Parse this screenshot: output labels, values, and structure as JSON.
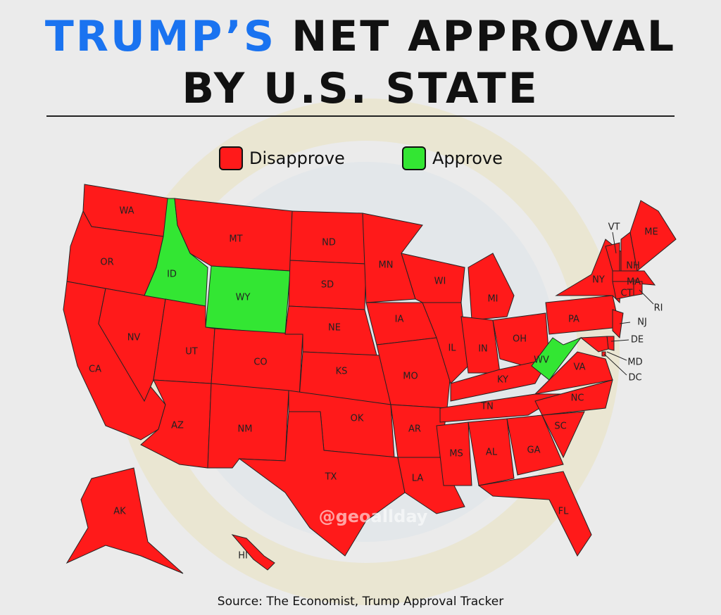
{
  "header": {
    "title_highlight": "TRUMP’S",
    "title_rest": "NET APPROVAL",
    "title_line2": "BY U.S. STATE"
  },
  "legend": [
    {
      "label": "Disapprove",
      "color": "#ff1a1a"
    },
    {
      "label": "Approve",
      "color": "#33e633"
    }
  ],
  "states": [
    {
      "label": "WA",
      "status": "Disapprove"
    },
    {
      "label": "OR",
      "status": "Disapprove"
    },
    {
      "label": "CA",
      "status": "Disapprove"
    },
    {
      "label": "NV",
      "status": "Disapprove"
    },
    {
      "label": "ID",
      "status": "Approve"
    },
    {
      "label": "MT",
      "status": "Disapprove"
    },
    {
      "label": "WY",
      "status": "Approve"
    },
    {
      "label": "UT",
      "status": "Disapprove"
    },
    {
      "label": "CO",
      "status": "Disapprove"
    },
    {
      "label": "AZ",
      "status": "Disapprove"
    },
    {
      "label": "NM",
      "status": "Disapprove"
    },
    {
      "label": "ND",
      "status": "Disapprove"
    },
    {
      "label": "SD",
      "status": "Disapprove"
    },
    {
      "label": "NE",
      "status": "Disapprove"
    },
    {
      "label": "KS",
      "status": "Disapprove"
    },
    {
      "label": "OK",
      "status": "Disapprove"
    },
    {
      "label": "TX",
      "status": "Disapprove"
    },
    {
      "label": "MN",
      "status": "Disapprove"
    },
    {
      "label": "IA",
      "status": "Disapprove"
    },
    {
      "label": "MO",
      "status": "Disapprove"
    },
    {
      "label": "AR",
      "status": "Disapprove"
    },
    {
      "label": "LA",
      "status": "Disapprove"
    },
    {
      "label": "WI",
      "status": "Disapprove"
    },
    {
      "label": "IL",
      "status": "Disapprove"
    },
    {
      "label": "MI",
      "status": "Disapprove"
    },
    {
      "label": "IN",
      "status": "Disapprove"
    },
    {
      "label": "OH",
      "status": "Disapprove"
    },
    {
      "label": "KY",
      "status": "Disapprove"
    },
    {
      "label": "TN",
      "status": "Disapprove"
    },
    {
      "label": "MS",
      "status": "Disapprove"
    },
    {
      "label": "AL",
      "status": "Disapprove"
    },
    {
      "label": "GA",
      "status": "Disapprove"
    },
    {
      "label": "FL",
      "status": "Disapprove"
    },
    {
      "label": "SC",
      "status": "Disapprove"
    },
    {
      "label": "NC",
      "status": "Disapprove"
    },
    {
      "label": "VA",
      "status": "Disapprove"
    },
    {
      "label": "WV",
      "status": "Approve"
    },
    {
      "label": "PA",
      "status": "Disapprove"
    },
    {
      "label": "NY",
      "status": "Disapprove"
    },
    {
      "label": "NJ",
      "status": "Disapprove"
    },
    {
      "label": "DE",
      "status": "Disapprove"
    },
    {
      "label": "MD",
      "status": "Disapprove"
    },
    {
      "label": "DC",
      "status": "Disapprove"
    },
    {
      "label": "VT",
      "status": "Disapprove"
    },
    {
      "label": "NH",
      "status": "Disapprove"
    },
    {
      "label": "ME",
      "status": "Disapprove"
    },
    {
      "label": "MA",
      "status": "Disapprove"
    },
    {
      "label": "CT",
      "status": "Disapprove"
    },
    {
      "label": "RI",
      "status": "Disapprove"
    },
    {
      "label": "AK",
      "status": "Disapprove"
    },
    {
      "label": "HI",
      "status": "Disapprove"
    }
  ],
  "watermark": "@geoallday",
  "source": "Source: The Economist, Trump Approval Tracker"
}
